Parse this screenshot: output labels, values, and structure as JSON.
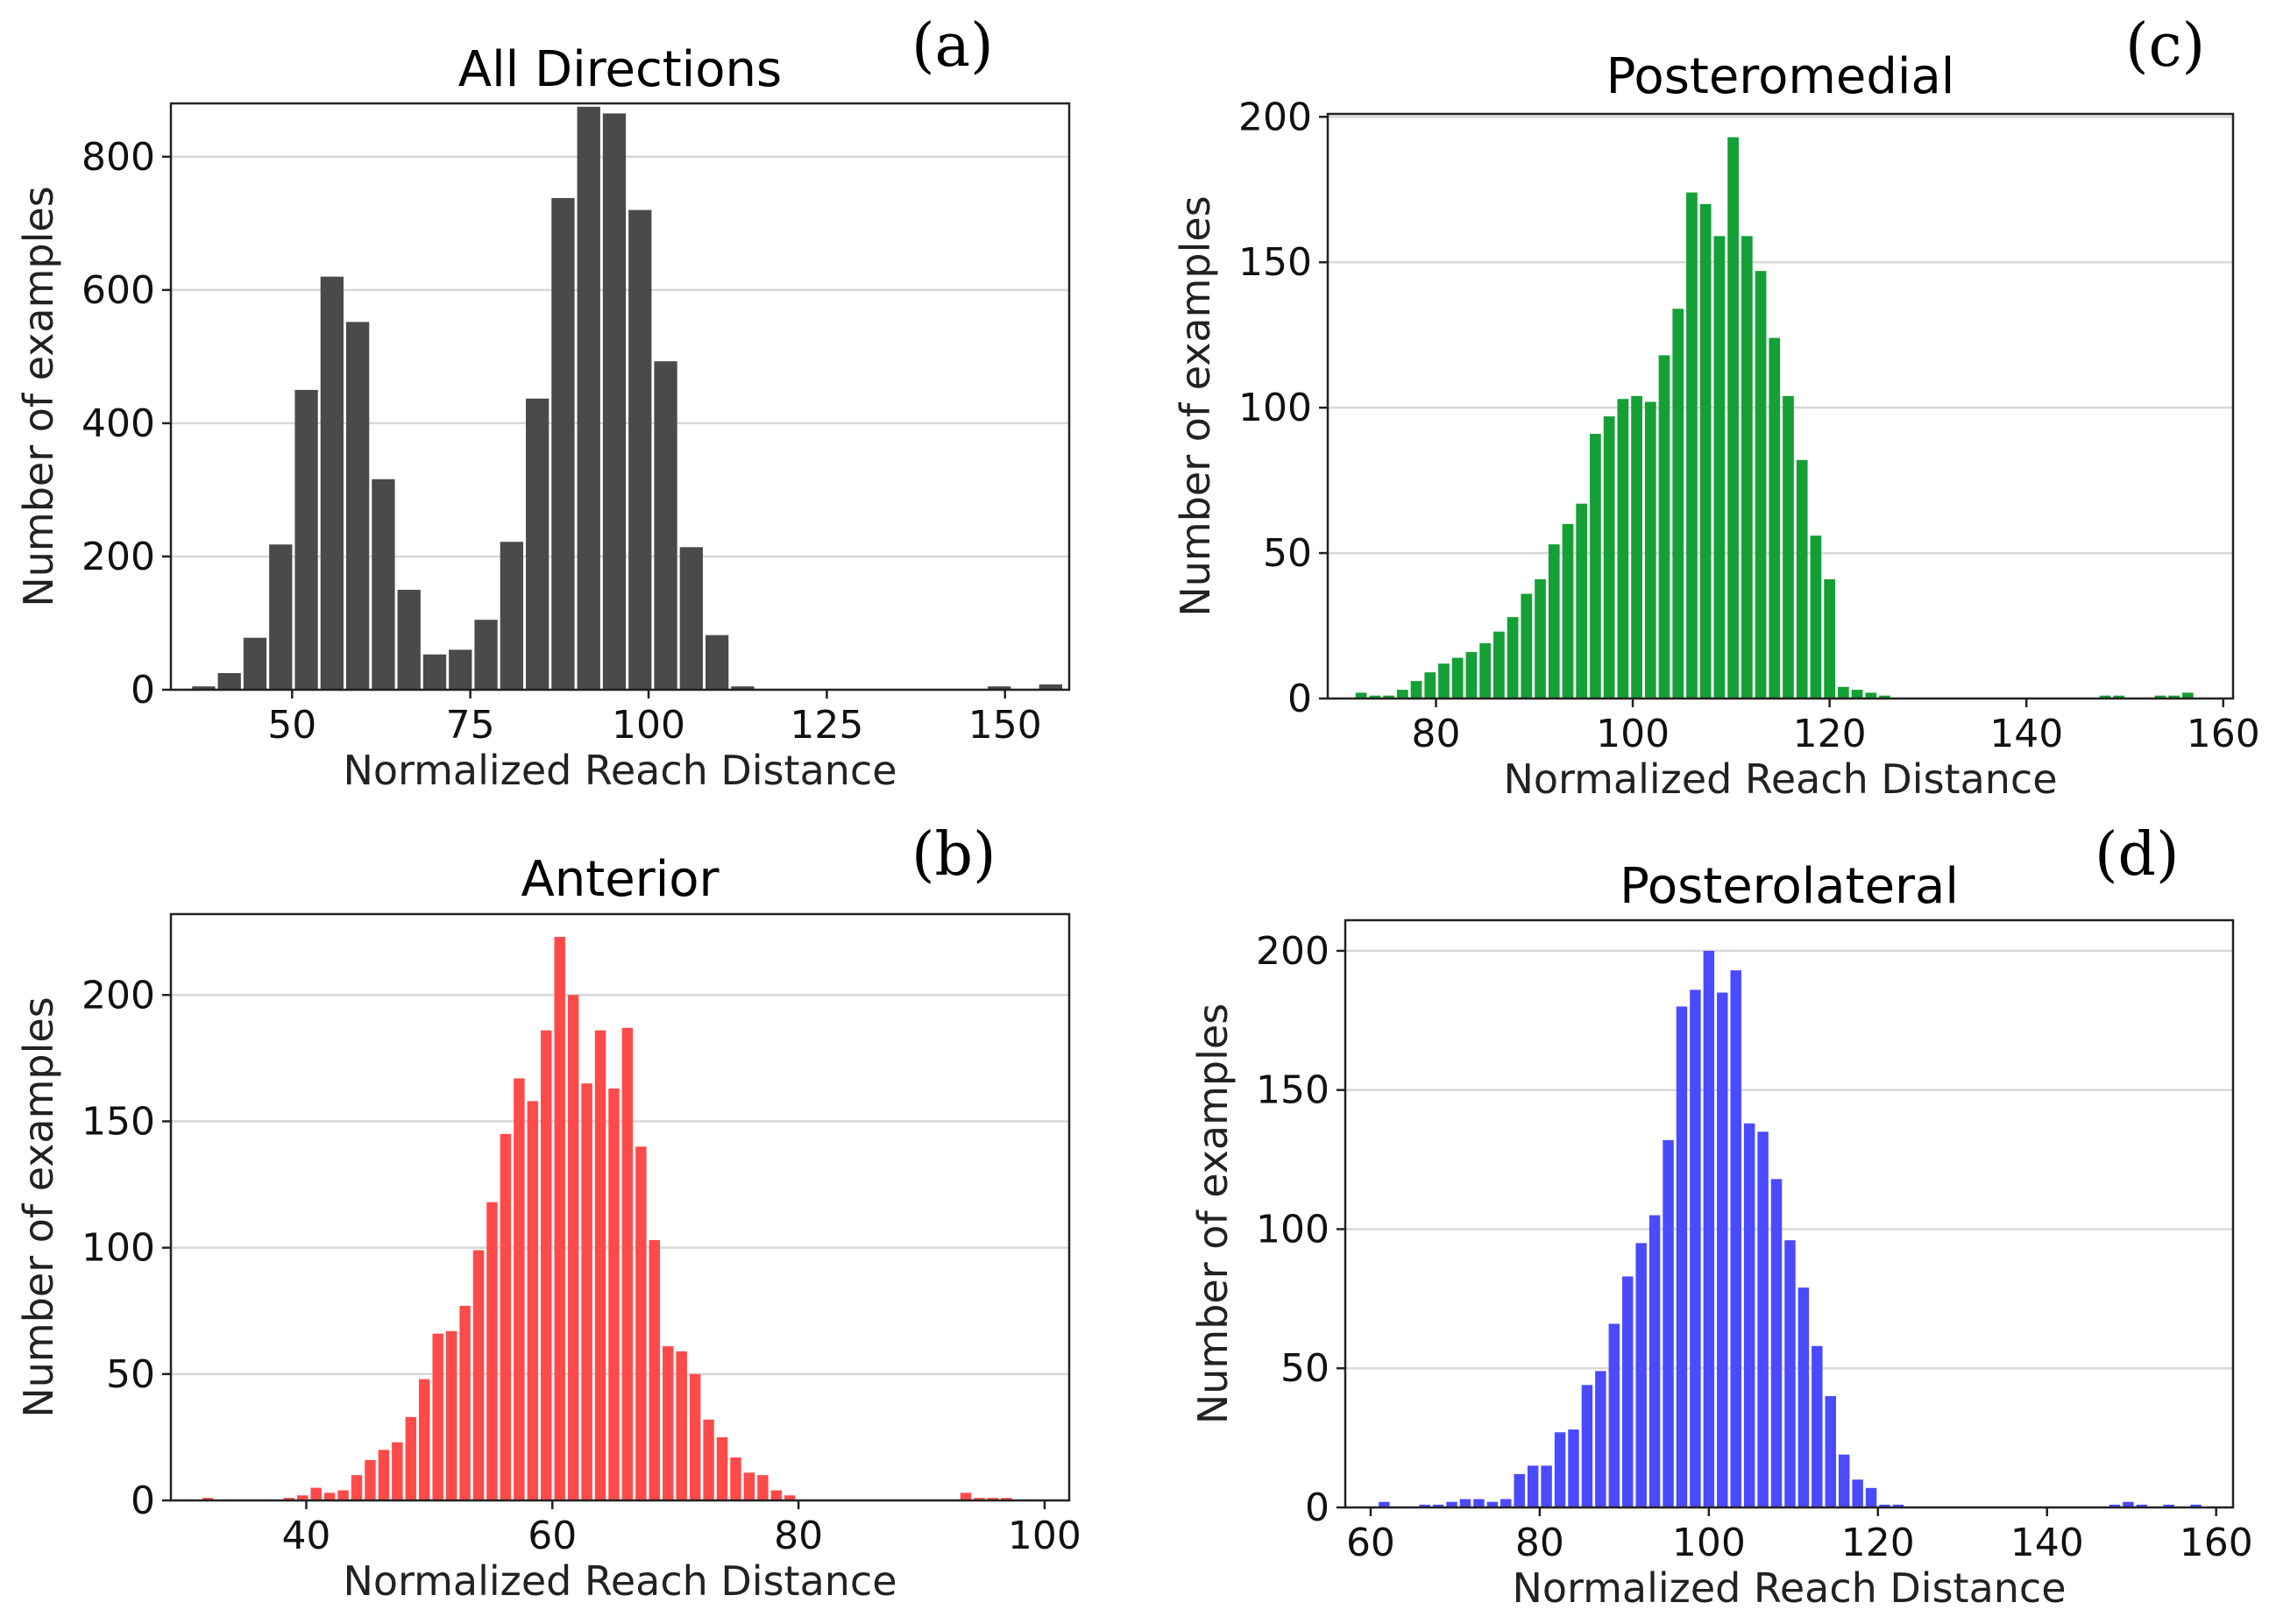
{
  "figure": {
    "background": "#ffffff"
  },
  "chart_data": [
    {
      "id": "a",
      "panel_label": "(a)",
      "type": "bar",
      "title": "All Directions",
      "xlabel": "Normalized Reach Distance",
      "ylabel": "Number of examples",
      "color": "#4a4a4a",
      "xlim": [
        33,
        159
      ],
      "ylim": [
        0,
        880
      ],
      "xticks": [
        50,
        75,
        100,
        125,
        150
      ],
      "yticks": [
        0,
        200,
        400,
        600,
        800
      ],
      "bin_width": 3.6,
      "x": [
        37.6,
        41.2,
        44.8,
        48.4,
        52.0,
        55.6,
        59.2,
        62.8,
        66.4,
        70.0,
        73.6,
        77.2,
        80.8,
        84.4,
        88.0,
        91.6,
        95.2,
        98.8,
        102.4,
        106.0,
        109.6,
        113.2,
        116.8,
        120.4,
        124.0,
        127.6,
        131.2,
        134.8,
        138.4,
        142.0,
        145.6,
        149.2,
        152.8,
        156.4
      ],
      "values": [
        5,
        25,
        78,
        218,
        450,
        620,
        552,
        316,
        150,
        53,
        60,
        105,
        222,
        437,
        738,
        875,
        865,
        720,
        493,
        214,
        82,
        5,
        0,
        0,
        0,
        0,
        0,
        0,
        0,
        0,
        0,
        5,
        0,
        8
      ]
    },
    {
      "id": "b",
      "panel_label": "(b)",
      "type": "bar",
      "title": "Anterior",
      "xlabel": "Normalized Reach Distance",
      "ylabel": "Number of examples",
      "color": "#ff4a4a",
      "xlim": [
        29,
        102
      ],
      "ylim": [
        0,
        232
      ],
      "xticks": [
        40,
        60,
        80,
        100
      ],
      "yticks": [
        0,
        50,
        100,
        150,
        200
      ],
      "bin_width": 1.1,
      "x": [
        32.0,
        33.1,
        34.2,
        35.3,
        36.4,
        37.5,
        38.6,
        39.7,
        40.8,
        41.9,
        43.0,
        44.1,
        45.2,
        46.3,
        47.4,
        48.5,
        49.6,
        50.7,
        51.8,
        52.9,
        54.0,
        55.1,
        56.2,
        57.3,
        58.4,
        59.5,
        60.6,
        61.7,
        62.8,
        63.9,
        65.0,
        66.1,
        67.2,
        68.3,
        69.4,
        70.5,
        71.6,
        72.7,
        73.8,
        74.9,
        76.0,
        77.1,
        78.2,
        79.3,
        80.4,
        81.5,
        82.6,
        83.7,
        84.8,
        85.9,
        87.0,
        88.1,
        89.2,
        90.3,
        91.4,
        92.5,
        93.6,
        94.7,
        95.8,
        96.9
      ],
      "values": [
        1,
        0,
        0,
        0,
        0,
        0,
        1,
        2,
        5,
        3,
        4,
        10,
        16,
        20,
        23,
        33,
        48,
        66,
        67,
        77,
        99,
        118,
        145,
        167,
        158,
        186,
        223,
        200,
        165,
        186,
        163,
        187,
        140,
        103,
        61,
        59,
        50,
        32,
        25,
        17,
        11,
        10,
        4,
        2,
        0,
        0,
        0,
        0,
        0,
        0,
        0,
        0,
        0,
        0,
        0,
        0,
        3,
        1,
        1,
        1
      ]
    },
    {
      "id": "c",
      "panel_label": "(c)",
      "type": "bar",
      "title": "Posteromedial",
      "xlabel": "Normalized Reach Distance",
      "ylabel": "Number of examples",
      "color": "#14a035",
      "xlim": [
        69,
        161
      ],
      "ylim": [
        0,
        201
      ],
      "xticks": [
        80,
        100,
        120,
        140,
        160
      ],
      "yticks": [
        0,
        50,
        100,
        150,
        200
      ],
      "bin_width": 1.4,
      "x": [
        72.4,
        73.8,
        75.2,
        76.6,
        78.0,
        79.4,
        80.8,
        82.2,
        83.6,
        85.0,
        86.4,
        87.8,
        89.2,
        90.6,
        92.0,
        93.4,
        94.8,
        96.2,
        97.6,
        99.0,
        100.4,
        101.8,
        103.2,
        104.6,
        106.0,
        107.4,
        108.8,
        110.2,
        111.6,
        113.0,
        114.4,
        115.8,
        117.2,
        118.6,
        120.0,
        121.4,
        122.8,
        124.2,
        125.6,
        127.0,
        128.4,
        129.8,
        131.2,
        132.6,
        134.0,
        135.4,
        136.8,
        138.2,
        139.6,
        141.0,
        142.4,
        143.8,
        145.2,
        146.6,
        148.0,
        149.4,
        150.8,
        152.2,
        153.6,
        155.0,
        156.4
      ],
      "values": [
        2,
        1,
        1,
        3,
        6,
        9,
        12,
        14,
        16,
        19,
        23,
        28,
        36,
        41,
        53,
        60,
        67,
        91,
        97,
        103,
        104,
        102,
        118,
        134,
        174,
        170,
        159,
        193,
        159,
        147,
        124,
        104,
        82,
        56,
        41,
        4,
        3,
        2,
        1,
        0,
        0,
        0,
        0,
        0,
        0,
        0,
        0,
        0,
        0,
        0,
        0,
        0,
        0,
        0,
        1,
        1,
        0,
        0,
        1,
        1,
        2
      ]
    },
    {
      "id": "d",
      "panel_label": "(d)",
      "type": "bar",
      "title": "Posterolateral",
      "xlabel": "Normalized Reach Distance",
      "ylabel": "Number of examples",
      "color": "#4a4aff",
      "xlim": [
        57,
        162
      ],
      "ylim": [
        0,
        211
      ],
      "xticks": [
        60,
        80,
        100,
        120,
        140,
        160
      ],
      "yticks": [
        0,
        50,
        100,
        150,
        200
      ],
      "bin_width": 1.6,
      "x": [
        61.6,
        63.2,
        64.8,
        66.4,
        68.0,
        69.6,
        71.2,
        72.8,
        74.4,
        76.0,
        77.6,
        79.2,
        80.8,
        82.4,
        84.0,
        85.6,
        87.2,
        88.8,
        90.4,
        92.0,
        93.6,
        95.2,
        96.8,
        98.4,
        100.0,
        101.6,
        103.2,
        104.8,
        106.4,
        108.0,
        109.6,
        111.2,
        112.8,
        114.4,
        116.0,
        117.6,
        119.2,
        120.8,
        122.4,
        124.0,
        125.6,
        127.2,
        128.8,
        130.4,
        132.0,
        133.6,
        135.2,
        136.8,
        138.4,
        140.0,
        141.6,
        143.2,
        144.8,
        146.4,
        148.0,
        149.6,
        151.2,
        152.8,
        154.4,
        156.0,
        157.6
      ],
      "values": [
        2,
        0,
        0,
        1,
        1,
        2,
        3,
        3,
        2,
        3,
        12,
        15,
        15,
        27,
        28,
        44,
        49,
        66,
        83,
        95,
        105,
        132,
        180,
        186,
        200,
        185,
        193,
        138,
        135,
        118,
        96,
        79,
        58,
        40,
        19,
        10,
        7,
        1,
        1,
        0,
        0,
        0,
        0,
        0,
        0,
        0,
        0,
        0,
        0,
        0,
        0,
        0,
        0,
        0,
        1,
        2,
        1,
        0,
        1,
        0,
        1
      ]
    }
  ]
}
